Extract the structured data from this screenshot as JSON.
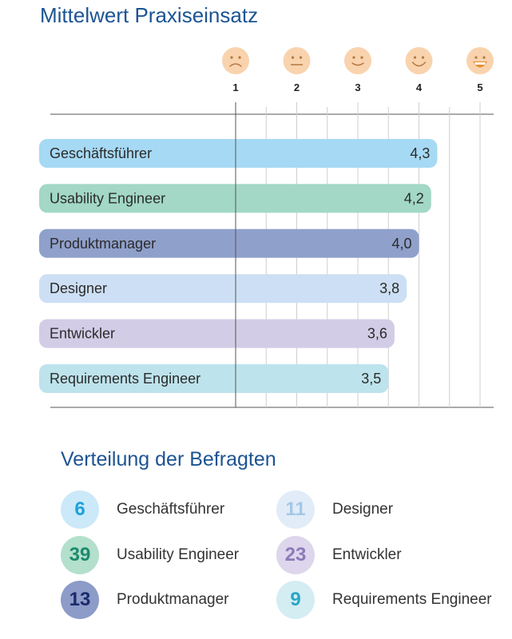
{
  "chart_data": {
    "type": "bar",
    "orientation": "horizontal",
    "title": "Mittelwert Praxiseinsatz",
    "xlim": [
      1,
      5
    ],
    "xticks": [
      "1",
      "2",
      "3",
      "4",
      "5"
    ],
    "grid": true,
    "categories": [
      "Geschäftsführer",
      "Usability Engineer",
      "Produktmanager",
      "Designer",
      "Entwickler",
      "Requirements Engineer"
    ],
    "values": [
      4.3,
      4.2,
      4.0,
      3.8,
      3.6,
      3.5
    ],
    "value_labels": [
      "4,3",
      "4,2",
      "4,0",
      "3,8",
      "3,6",
      "3,5"
    ],
    "colors": [
      "#a6d9f4",
      "#a2d8c5",
      "#8fa0cb",
      "#cddff4",
      "#d3cce6",
      "#bde3ec"
    ],
    "scale_icons": [
      "very-sad-face-icon",
      "neutral-face-icon",
      "slight-smile-face-icon",
      "smile-face-icon",
      "big-grin-face-icon"
    ]
  },
  "distribution": {
    "title": "Verteilung der Befragten",
    "items": [
      {
        "count": "6",
        "label": "Geschäftsführer",
        "circle_color": "#cbe9f8",
        "text_color": "#1ba2dd"
      },
      {
        "count": "39",
        "label": "Usability Engineer",
        "circle_color": "#b3e0cd",
        "text_color": "#1d8a6b"
      },
      {
        "count": "13",
        "label": "Produktmanager",
        "circle_color": "#8c9bc8",
        "text_color": "#1a2c6e"
      },
      {
        "count": "11",
        "label": "Designer",
        "circle_color": "#e1ecf8",
        "text_color": "#a3c8e6"
      },
      {
        "count": "23",
        "label": "Entwickler",
        "circle_color": "#ddd6ec",
        "text_color": "#8b7bb8"
      },
      {
        "count": "9",
        "label": "Requirements Engineer",
        "circle_color": "#d3edf3",
        "text_color": "#2aa5c5"
      }
    ]
  }
}
